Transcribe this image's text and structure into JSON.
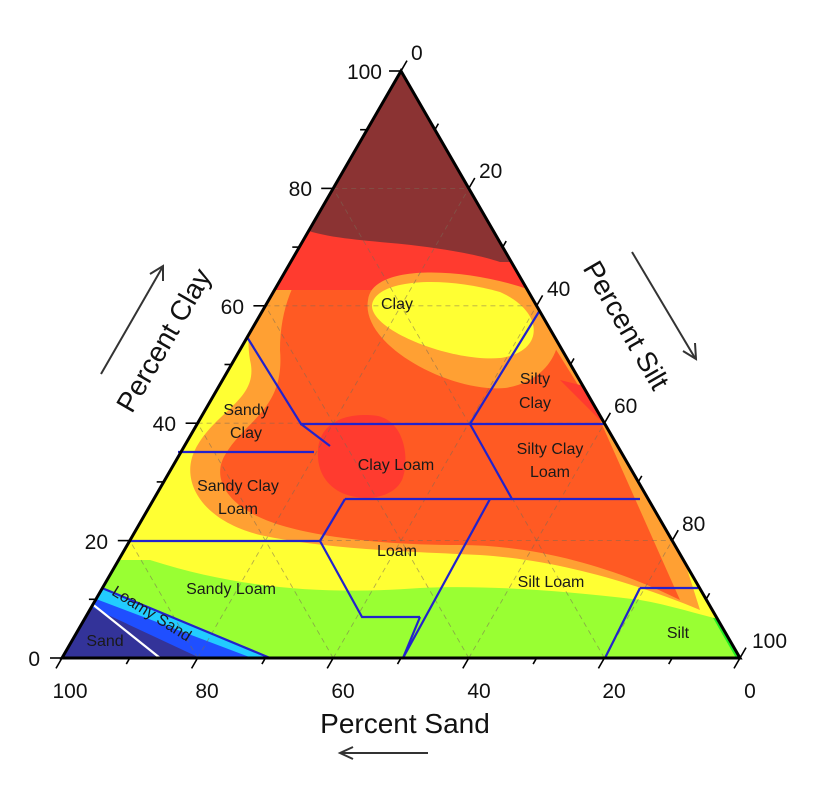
{
  "chart_data": {
    "type": "ternary-contour",
    "axes": {
      "clay": {
        "label": "Percent Clay",
        "ticks": [
          "0",
          "20",
          "40",
          "60",
          "80",
          "100"
        ]
      },
      "silt": {
        "label": "Percent Silt",
        "ticks": [
          "0",
          "20",
          "40",
          "60",
          "80",
          "100"
        ]
      },
      "sand": {
        "label": "Percent Sand",
        "ticks": [
          "100",
          "80",
          "60",
          "40",
          "20",
          "0"
        ]
      }
    },
    "colors": {
      "dark_red": "#8b3333",
      "red": "#ff3b2f",
      "orange_red": "#ff5a23",
      "orange": "#ffa033",
      "yellow": "#ffff33",
      "light_green": "#99ff33",
      "green": "#22ee22",
      "cyan": "#22ccff",
      "blue": "#1f4fff",
      "navy": "#333399",
      "boundary": "#2222cc"
    },
    "regions": [
      {
        "name": "clay",
        "label": "Clay",
        "clay": 58,
        "silt": 20
      },
      {
        "name": "sandy-clay",
        "label": "Sandy Clay",
        "clay": 43,
        "silt": 7
      },
      {
        "name": "silty-clay",
        "label": "Silty Clay",
        "clay": 47,
        "silt": 42
      },
      {
        "name": "clay-loam",
        "label": "Clay Loam",
        "clay": 33,
        "silt": 34
      },
      {
        "name": "silty-clay-loam",
        "label": "Silty Clay Loam",
        "clay": 33,
        "silt": 53
      },
      {
        "name": "sandy-clay-loam",
        "label": "Sandy Clay Loam",
        "clay": 28,
        "silt": 10
      },
      {
        "name": "loam",
        "label": "Loam",
        "clay": 18,
        "silt": 38
      },
      {
        "name": "sandy-loam",
        "label": "Sandy Loam",
        "clay": 11,
        "silt": 22
      },
      {
        "name": "silt-loam",
        "label": "Silt Loam",
        "clay": 12,
        "silt": 62
      },
      {
        "name": "silt",
        "label": "Silt",
        "clay": 5,
        "silt": 88
      },
      {
        "name": "loamy-sand",
        "label": "Loamy Sand",
        "clay": 5,
        "silt": 8
      },
      {
        "name": "sand",
        "label": "Sand",
        "clay": 3,
        "silt": 4
      }
    ]
  }
}
